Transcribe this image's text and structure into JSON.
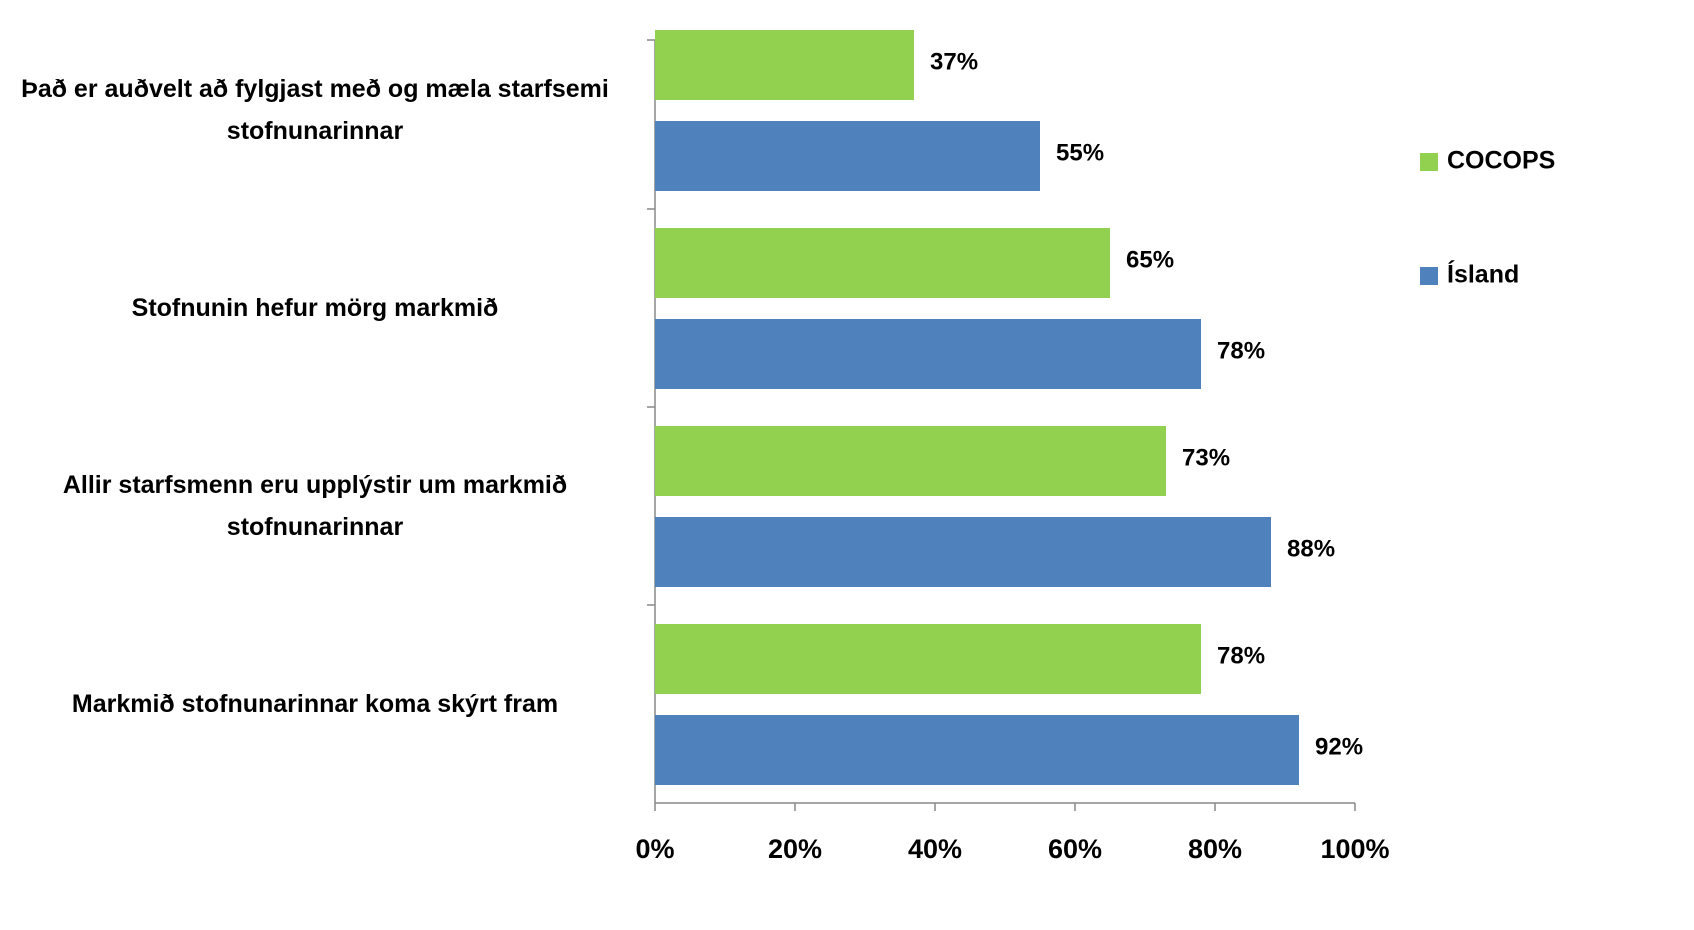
{
  "chart_data": {
    "type": "bar",
    "orientation": "horizontal",
    "categories": [
      "Það er auðvelt að fylgjast með og mæla starfsemi stofnunarinnar",
      "Stofnunin hefur mörg markmið",
      "Allir starfsmenn eru upplýstir um markmið stofnunarinnar",
      "Markmið stofnunarinnar koma skýrt fram"
    ],
    "series": [
      {
        "name": "COCOPS",
        "color": "#92d050",
        "values": [
          37,
          65,
          73,
          78
        ],
        "value_labels": [
          "37%",
          "65%",
          "73%",
          "78%"
        ]
      },
      {
        "name": "Ísland",
        "color": "#4f81bd",
        "values": [
          55,
          78,
          88,
          92
        ],
        "value_labels": [
          "55%",
          "78%",
          "88%",
          "92%"
        ]
      }
    ],
    "xlim": [
      0,
      100
    ],
    "xticks": [
      {
        "value": 0,
        "label": "0%"
      },
      {
        "value": 20,
        "label": "20%"
      },
      {
        "value": 40,
        "label": "40%"
      },
      {
        "value": 60,
        "label": "60%"
      },
      {
        "value": 80,
        "label": "80%"
      },
      {
        "value": 100,
        "label": "100%"
      }
    ],
    "legend": "right"
  }
}
